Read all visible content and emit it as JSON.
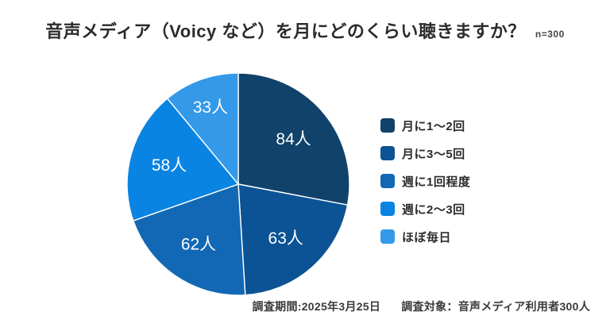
{
  "header": {
    "title": "音声メディア（Voicy など）を月にどのくらい聴きますか？",
    "sample_size": "n=300"
  },
  "footer": {
    "survey_period": "調査期間:2025年3月25日",
    "survey_target": "調査対象：音声メディア利用者300人"
  },
  "chart_data": {
    "type": "pie",
    "title": "音声メディア（Voicy など）を月にどのくらい聴きますか？",
    "n": 300,
    "start_angle_deg": 0,
    "direction": "clockwise",
    "legend_position": "right",
    "categories": [
      "月に1〜2回",
      "月に3〜5回",
      "週に1回程度",
      "週に2〜3回",
      "ほぼ毎日"
    ],
    "values": [
      84,
      63,
      62,
      58,
      33
    ],
    "value_labels": [
      "84人",
      "63人",
      "62人",
      "58人",
      "33人"
    ],
    "colors": [
      "#10426b",
      "#0b5394",
      "#1268b4",
      "#0a84e2",
      "#3399e8"
    ],
    "slice_border_color": "#ffffff",
    "label_color": "#ffffff",
    "background_color": "#ffffff"
  }
}
